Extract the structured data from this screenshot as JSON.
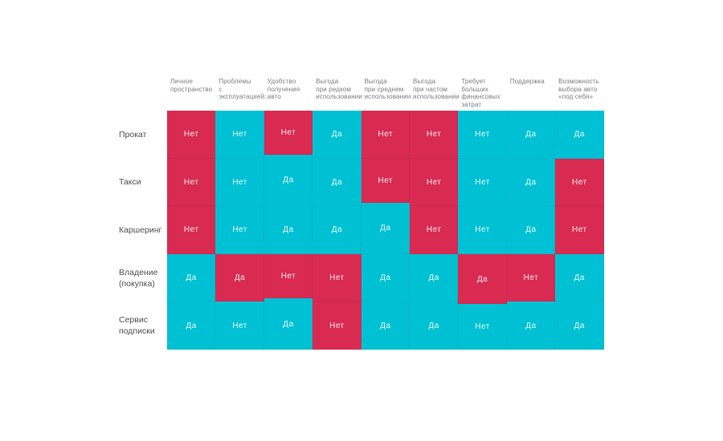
{
  "page": {
    "background": "#ffffff"
  },
  "colors": {
    "positive": "#00c1d3",
    "negative": "#d92a51",
    "cell_text": "#ffffff",
    "header_text": "#7b7b7b",
    "label_text": "#4c4c4c"
  },
  "chart_data": {
    "type": "table",
    "title": "",
    "description": "Yes/No comparison matrix of car usage options vs criteria; cyan cells mark favorable answers, crimson cells mark unfavorable answers",
    "tone_colors": {
      "positive": "#00c1d3",
      "negative": "#d92a51"
    },
    "columns": [
      "Личное\nпространство",
      "Проблемы\nс эксплуатацией:",
      "Удобство\nполучения авто",
      "Выгода\nпри редком\nиспользовании",
      "Выгода\nпри среднем\nиспользовании",
      "Выгода\nпри частом\nиспользовании",
      "Требует больших\nфинансовых\nзатрат",
      "Поддержка",
      "Возможность\nвыбора авто\n«под себя»"
    ],
    "rows": [
      {
        "label": "Прокат",
        "values": [
          "Нет",
          "Нет",
          "Нет",
          "Да",
          "Нет",
          "Нет",
          "Нет",
          "Да",
          "Да"
        ],
        "tones": [
          "negative",
          "positive",
          "negative",
          "positive",
          "negative",
          "negative",
          "positive",
          "positive",
          "positive"
        ]
      },
      {
        "label": "Такси",
        "values": [
          "Нет",
          "Нет",
          "Да",
          "Да",
          "Нет",
          "Нет",
          "Нет",
          "Да",
          "Нет"
        ],
        "tones": [
          "negative",
          "positive",
          "positive",
          "positive",
          "negative",
          "negative",
          "positive",
          "positive",
          "negative"
        ]
      },
      {
        "label": "Каршеринг",
        "values": [
          "Нет",
          "Нет",
          "Да",
          "Да",
          "Да",
          "Нет",
          "Нет",
          "Да",
          "Нет"
        ],
        "tones": [
          "negative",
          "positive",
          "positive",
          "positive",
          "positive",
          "negative",
          "positive",
          "positive",
          "negative"
        ]
      },
      {
        "label": "Владение\n(покупка)",
        "values": [
          "Да",
          "Да",
          "Нет",
          "Нет",
          "Да",
          "Да",
          "Да",
          "Нет",
          "Да"
        ],
        "tones": [
          "positive",
          "negative",
          "negative",
          "negative",
          "positive",
          "positive",
          "negative",
          "negative",
          "positive"
        ]
      },
      {
        "label": "Сервис\nподписки",
        "values": [
          "Да",
          "Нет",
          "Да",
          "Нет",
          "Да",
          "Да",
          "Нет",
          "Да",
          "Да"
        ],
        "tones": [
          "positive",
          "positive",
          "positive",
          "negative",
          "positive",
          "positive",
          "positive",
          "positive",
          "positive"
        ]
      }
    ]
  }
}
